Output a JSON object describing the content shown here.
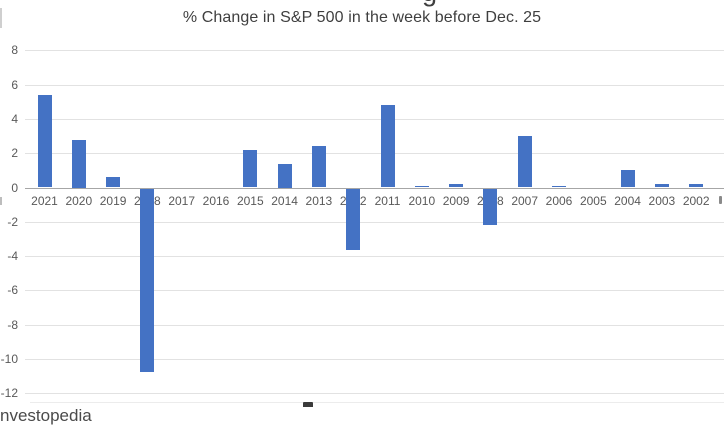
{
  "title": "% Change in S&P 500 in the week before Dec. 25",
  "watermark": "nvestopedia",
  "artifacts": {
    "cropped_glyph_top": "g"
  },
  "colors": {
    "bar": "#4472C4",
    "title_text": "#3f3f3f",
    "axis_text": "#595959",
    "gridline": "#e2e2e2",
    "zero_line": "#a6a6a6",
    "background": "#ffffff"
  },
  "chart_data": {
    "type": "bar",
    "title": "% Change in S&P 500 in the week before Dec. 25",
    "categories": [
      "2021",
      "2020",
      "2019",
      "2018",
      "2017",
      "2016",
      "2015",
      "2014",
      "2013",
      "2012",
      "2011",
      "2010",
      "2009",
      "2008",
      "2007",
      "2006",
      "2005",
      "2004",
      "2003",
      "2002"
    ],
    "values": [
      5.4,
      2.8,
      0.6,
      -10.7,
      0,
      0,
      2.2,
      1.4,
      2.4,
      -3.6,
      4.8,
      0.1,
      0.2,
      -2.1,
      3.0,
      0.1,
      0,
      1.0,
      0.2,
      0.2
    ],
    "xlabel": "",
    "ylabel": "",
    "ylim": [
      -12,
      8
    ],
    "yticks": [
      8,
      6,
      4,
      2,
      0,
      -2,
      -4,
      -6,
      -8,
      -10,
      -12
    ],
    "grid": true,
    "legend": false,
    "bar_color": "#4472C4",
    "source_text_visible": "nvestopedia"
  }
}
